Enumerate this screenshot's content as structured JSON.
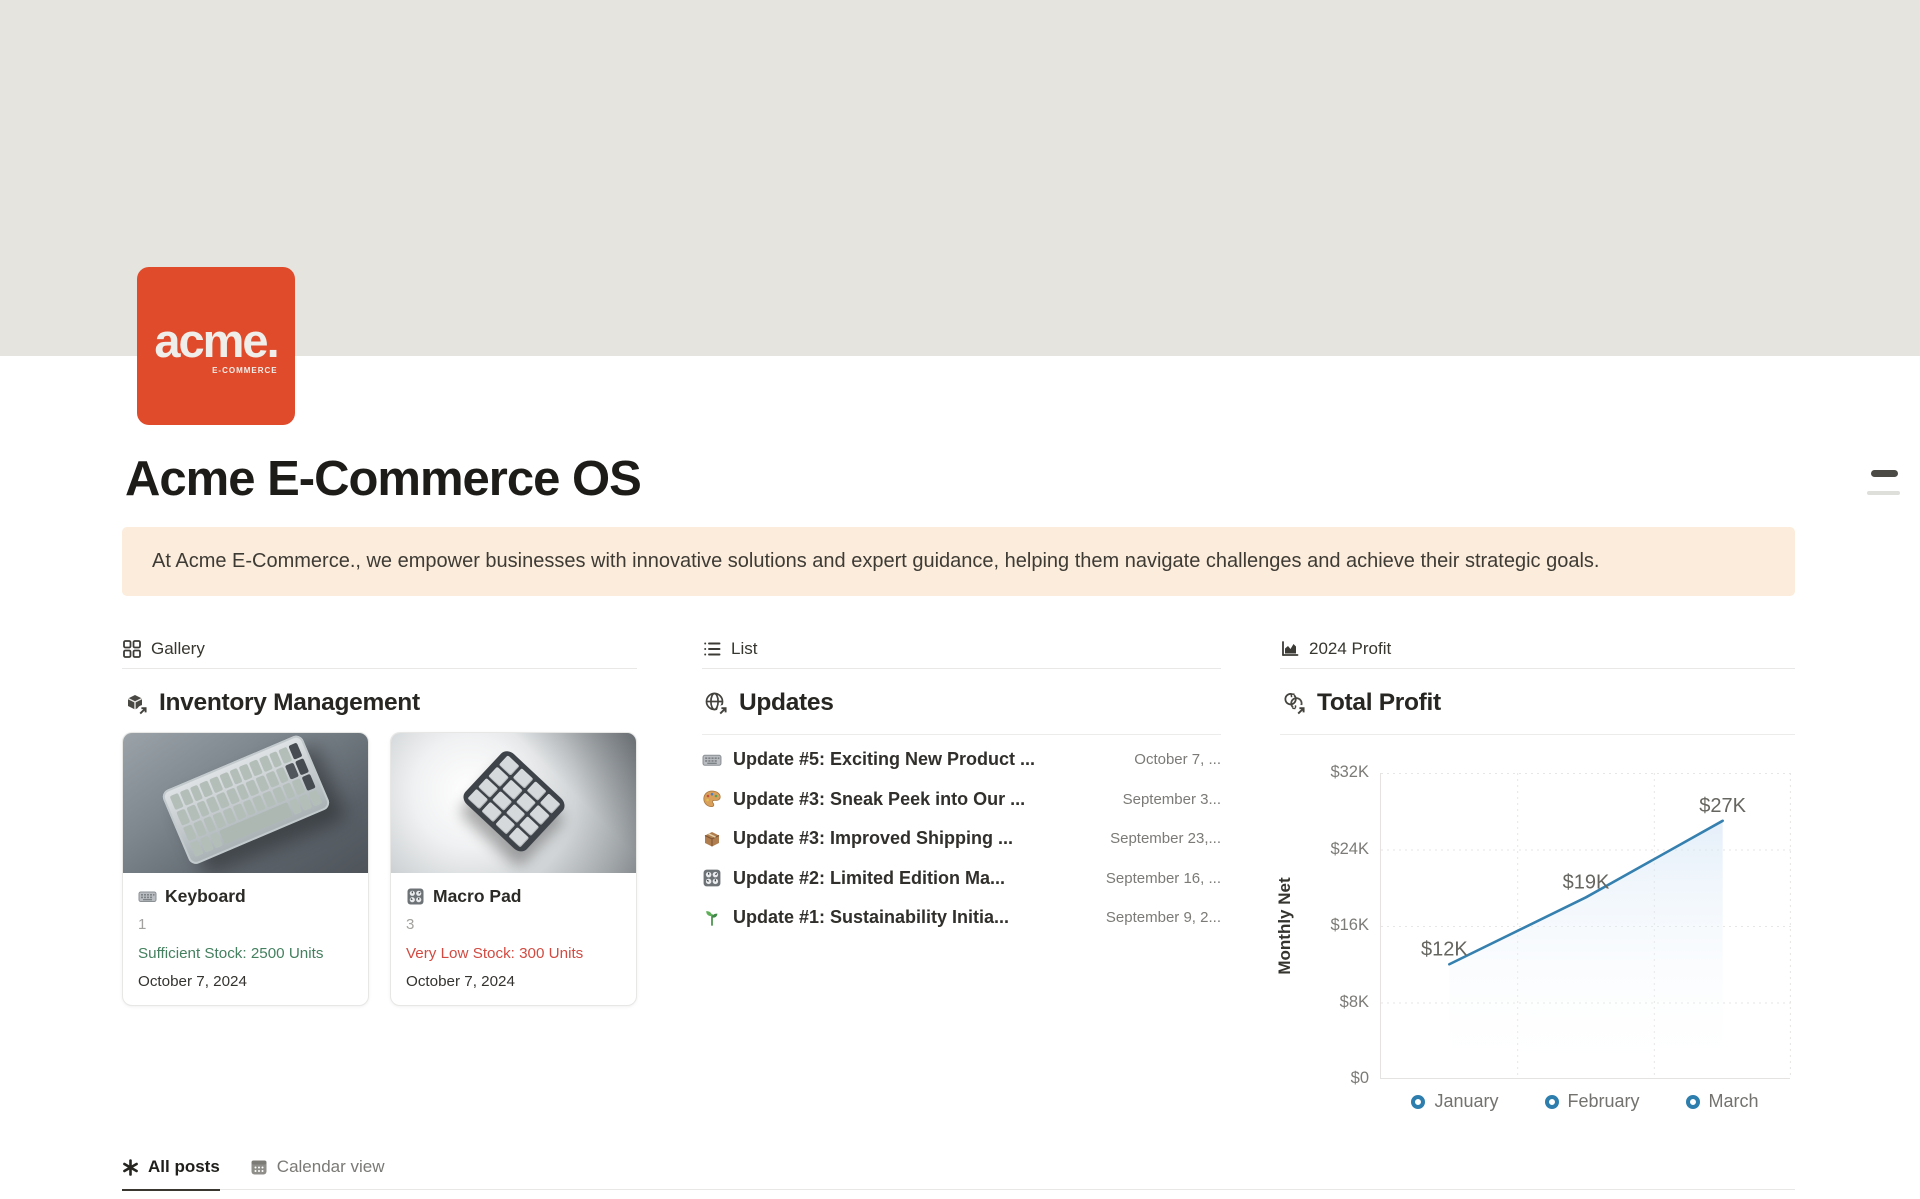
{
  "page": {
    "title": "Acme E-Commerce OS"
  },
  "logo": {
    "brand": "acme.",
    "sub": "E-COMMERCE",
    "bg": "#e04b2c"
  },
  "callout": {
    "text": "At Acme E-Commerce., we empower businesses with innovative solutions and expert guidance, helping them navigate challenges and achieve their strategic goals."
  },
  "columns": {
    "gallery": {
      "view_tab": "Gallery",
      "heading": "Inventory Management",
      "cards": [
        {
          "icon": "keyboard-emoji",
          "name": "Keyboard",
          "count": "1",
          "status": "Sufficient Stock: 2500 Units",
          "status_color": "#44805f",
          "date": "October 7, 2024",
          "image": "keyboard-photo"
        },
        {
          "icon": "control-knobs-emoji",
          "name": "Macro Pad",
          "count": "3",
          "status": "Very Low Stock: 300 Units",
          "status_color": "#d14b42",
          "date": "October 7, 2024",
          "image": "macropad-photo"
        }
      ]
    },
    "list": {
      "view_tab": "List",
      "heading": "Updates",
      "items": [
        {
          "icon": "keyboard-emoji",
          "title": "Update #5: Exciting New Product ...",
          "date": "October 7, ..."
        },
        {
          "icon": "palette-emoji",
          "title": "Update #3: Sneak Peek into Our ...",
          "date": "September 3..."
        },
        {
          "icon": "package-emoji",
          "title": "Update #3: Improved Shipping ...",
          "date": "September 23,..."
        },
        {
          "icon": "control-knobs-emoji",
          "title": "Update #2: Limited Edition Ma...",
          "date": "September 16, ..."
        },
        {
          "icon": "seedling-emoji",
          "title": "Update #1: Sustainability Initia...",
          "date": "September 9, 2..."
        }
      ]
    },
    "chart": {
      "view_tab": "2024 Profit",
      "heading": "Total Profit"
    }
  },
  "chart_data": {
    "type": "area",
    "x": [
      "January",
      "February",
      "March"
    ],
    "values": [
      12000,
      19000,
      27000
    ],
    "point_labels": [
      "$12K",
      "$19K",
      "$27K"
    ],
    "ylabel": "Monthly Net",
    "yticks": [
      "$32K",
      "$24K",
      "$16K",
      "$8K",
      "$0"
    ],
    "ylim": [
      0,
      32000
    ],
    "line_color": "#3580af",
    "legend_position": "bottom",
    "grid": "dotted"
  },
  "footer": {
    "tabs": [
      {
        "label": "All posts",
        "active": true
      },
      {
        "label": "Calendar view",
        "active": false
      }
    ]
  }
}
